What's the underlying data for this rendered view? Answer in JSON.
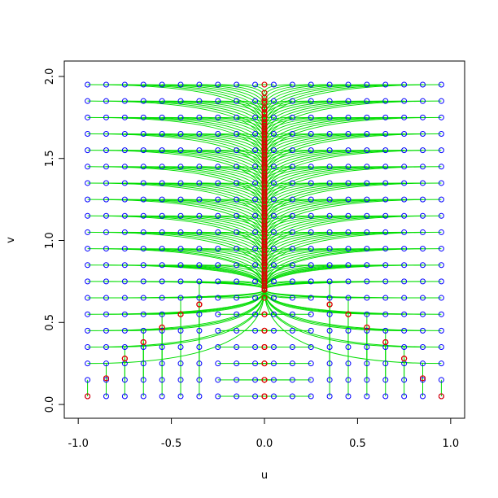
{
  "chart_data": {
    "type": "scatter",
    "xlabel": "u",
    "ylabel": "v",
    "xlim": [
      -1.075,
      1.075
    ],
    "ylim": [
      -0.084,
      2.094
    ],
    "xticks": [
      {
        "value": -1,
        "label": "-1.0"
      },
      -0.5,
      {
        "value": 0,
        "label": "0.0"
      },
      0.5,
      {
        "value": 1,
        "label": "1.0"
      }
    ],
    "yticks": [
      {
        "value": 0,
        "label": "0.0"
      },
      0.5,
      {
        "value": 1,
        "label": "1.0"
      },
      1.5,
      {
        "value": 2,
        "label": "2.0"
      }
    ],
    "start_color": "#0000ff",
    "end_color": "#dd0000",
    "path_color": "#00dd00",
    "start_u": [
      -0.95,
      -0.85,
      -0.75,
      -0.65,
      -0.55,
      -0.45,
      -0.35,
      -0.25,
      -0.15,
      -0.05,
      0.05,
      0.15,
      0.25,
      0.35,
      0.45,
      0.55,
      0.65,
      0.75,
      0.85,
      0.95
    ],
    "start_v": [
      0.05,
      0.15,
      0.25,
      0.35,
      0.45,
      0.55,
      0.65,
      0.75,
      0.85,
      0.95,
      1.05,
      1.15,
      1.25,
      1.35,
      1.45,
      1.55,
      1.65,
      1.75,
      1.85,
      1.95
    ],
    "end_u": [
      [
        -0.95,
        -0.85,
        -0.75,
        -0.65,
        -0.55,
        -0.45,
        -0.35,
        0,
        0,
        0,
        0,
        0,
        0,
        0.35,
        0.45,
        0.55,
        0.65,
        0.75,
        0.85,
        0.95
      ],
      [
        -0.95,
        -0.85,
        -0.75,
        -0.65,
        -0.55,
        -0.45,
        -0.35,
        0,
        0,
        0,
        0,
        0,
        0,
        0.35,
        0.45,
        0.55,
        0.65,
        0.75,
        0.85,
        0.95
      ],
      [
        0,
        -0.85,
        -0.75,
        -0.65,
        -0.55,
        -0.45,
        -0.35,
        0,
        0,
        0,
        0,
        0,
        0,
        0.35,
        0.45,
        0.55,
        0.65,
        0.75,
        0.85,
        0
      ],
      [
        0,
        0,
        -0.75,
        -0.65,
        -0.55,
        -0.45,
        -0.35,
        0,
        0,
        0,
        0,
        0,
        0,
        0.35,
        0.45,
        0.55,
        0.65,
        0.75,
        0,
        0
      ],
      [
        0,
        0,
        0,
        -0.65,
        -0.55,
        -0.45,
        -0.35,
        0,
        0,
        0,
        0,
        0,
        0,
        0.35,
        0.45,
        0.55,
        0.65,
        0,
        0,
        0
      ],
      [
        0,
        0,
        0,
        0,
        -0.55,
        -0.45,
        -0.35,
        0,
        0,
        0,
        0,
        0,
        0,
        0.35,
        0.45,
        0.55,
        0,
        0,
        0,
        0
      ],
      [
        0,
        0,
        0,
        0,
        0,
        -0.45,
        -0.35,
        0,
        0,
        0,
        0,
        0,
        0,
        0.35,
        0.45,
        0,
        0,
        0,
        0,
        0
      ],
      [
        0,
        0,
        0,
        0,
        0,
        0,
        -0.35,
        0,
        0,
        0,
        0,
        0,
        0,
        0.35,
        0,
        0,
        0,
        0,
        0,
        0
      ],
      [
        0,
        0,
        0,
        0,
        0,
        0,
        0,
        0,
        0,
        0,
        0,
        0,
        0,
        0,
        0,
        0,
        0,
        0,
        0,
        0
      ],
      [
        0,
        0,
        0,
        0,
        0,
        0,
        0,
        0,
        0,
        0,
        0,
        0,
        0,
        0,
        0,
        0,
        0,
        0,
        0,
        0
      ],
      [
        0,
        0,
        0,
        0,
        0,
        0,
        0,
        0,
        0,
        0,
        0,
        0,
        0,
        0,
        0,
        0,
        0,
        0,
        0,
        0
      ],
      [
        0,
        0,
        0,
        0,
        0,
        0,
        0,
        0,
        0,
        0,
        0,
        0,
        0,
        0,
        0,
        0,
        0,
        0,
        0,
        0
      ],
      [
        0,
        0,
        0,
        0,
        0,
        0,
        0,
        0,
        0,
        0,
        0,
        0,
        0,
        0,
        0,
        0,
        0,
        0,
        0,
        0
      ],
      [
        0,
        0,
        0,
        0,
        0,
        0,
        0,
        0,
        0,
        0,
        0,
        0,
        0,
        0,
        0,
        0,
        0,
        0,
        0,
        0
      ],
      [
        0,
        0,
        0,
        0,
        0,
        0,
        0,
        0,
        0,
        0,
        0,
        0,
        0,
        0,
        0,
        0,
        0,
        0,
        0,
        0
      ],
      [
        0,
        0,
        0,
        0,
        0,
        0,
        0,
        0,
        0,
        0,
        0,
        0,
        0,
        0,
        0,
        0,
        0,
        0,
        0,
        0
      ],
      [
        0,
        0,
        0,
        0,
        0,
        0,
        0,
        0,
        0,
        0,
        0,
        0,
        0,
        0,
        0,
        0,
        0,
        0,
        0,
        0
      ],
      [
        0,
        0,
        0,
        0,
        0,
        0,
        0,
        0,
        0,
        0,
        0,
        0,
        0,
        0,
        0,
        0,
        0,
        0,
        0,
        0
      ],
      [
        0,
        0,
        0,
        0,
        0,
        0,
        0,
        0,
        0,
        0,
        0,
        0,
        0,
        0,
        0,
        0,
        0,
        0,
        0,
        0
      ],
      [
        0,
        0,
        0,
        0,
        0,
        0,
        0,
        0,
        0,
        0,
        0,
        0,
        0,
        0,
        0,
        0,
        0,
        0,
        0,
        0
      ]
    ],
    "end_v": [
      [
        0.05,
        0.16,
        0.28,
        0.38,
        0.47,
        0.55,
        0.61,
        0.05,
        0.05,
        0.05,
        0.05,
        0.05,
        0.05,
        0.61,
        0.55,
        0.47,
        0.38,
        0.28,
        0.16,
        0.05
      ],
      [
        0.05,
        0.16,
        0.28,
        0.38,
        0.47,
        0.55,
        0.61,
        0.15,
        0.15,
        0.15,
        0.15,
        0.15,
        0.15,
        0.61,
        0.55,
        0.47,
        0.38,
        0.28,
        0.16,
        0.05
      ],
      [
        0.7,
        0.16,
        0.28,
        0.38,
        0.47,
        0.55,
        0.61,
        0.25,
        0.25,
        0.25,
        0.25,
        0.25,
        0.25,
        0.61,
        0.55,
        0.47,
        0.38,
        0.28,
        0.16,
        0.7
      ],
      [
        0.7,
        0.7,
        0.28,
        0.38,
        0.47,
        0.55,
        0.61,
        0.35,
        0.35,
        0.35,
        0.35,
        0.35,
        0.35,
        0.61,
        0.55,
        0.47,
        0.38,
        0.28,
        0.7,
        0.7
      ],
      [
        0.7,
        0.7,
        0.7,
        0.38,
        0.47,
        0.55,
        0.61,
        0.45,
        0.45,
        0.45,
        0.45,
        0.45,
        0.45,
        0.61,
        0.55,
        0.47,
        0.38,
        0.7,
        0.7,
        0.7
      ],
      [
        0.7,
        0.7,
        0.7,
        0.7,
        0.47,
        0.55,
        0.61,
        0.55,
        0.55,
        0.55,
        0.55,
        0.55,
        0.55,
        0.61,
        0.55,
        0.47,
        0.7,
        0.7,
        0.7,
        0.7
      ],
      [
        0.7,
        0.7,
        0.7,
        0.7,
        0.7,
        0.55,
        0.61,
        0.7,
        0.7,
        0.65,
        0.65,
        0.7,
        0.7,
        0.61,
        0.55,
        0.7,
        0.7,
        0.7,
        0.7,
        0.7
      ],
      [
        0.7,
        0.7,
        0.7,
        0.7,
        0.7,
        0.7,
        0.61,
        0.7,
        0.7,
        0.75,
        0.75,
        0.7,
        0.7,
        0.61,
        0.7,
        0.7,
        0.7,
        0.7,
        0.7,
        0.7
      ],
      [
        0.7,
        0.7,
        0.7,
        0.7,
        0.7,
        0.71,
        0.74,
        0.77,
        0.8,
        0.85,
        0.85,
        0.8,
        0.77,
        0.74,
        0.71,
        0.7,
        0.7,
        0.7,
        0.7,
        0.7
      ],
      [
        0.7,
        0.7,
        0.72,
        0.75,
        0.78,
        0.81,
        0.84,
        0.87,
        0.9,
        0.95,
        0.95,
        0.9,
        0.87,
        0.84,
        0.81,
        0.78,
        0.75,
        0.72,
        0.7,
        0.7
      ],
      [
        0.76,
        0.79,
        0.82,
        0.85,
        0.88,
        0.91,
        0.94,
        0.97,
        1.0,
        1.05,
        1.05,
        1.0,
        0.97,
        0.94,
        0.91,
        0.88,
        0.85,
        0.82,
        0.79,
        0.76
      ],
      [
        0.86,
        0.89,
        0.92,
        0.95,
        0.98,
        1.01,
        1.04,
        1.07,
        1.1,
        1.15,
        1.15,
        1.1,
        1.07,
        1.04,
        1.01,
        0.98,
        0.95,
        0.92,
        0.89,
        0.86
      ],
      [
        0.96,
        0.99,
        1.02,
        1.05,
        1.08,
        1.11,
        1.14,
        1.17,
        1.2,
        1.25,
        1.25,
        1.2,
        1.17,
        1.14,
        1.11,
        1.08,
        1.05,
        1.02,
        0.99,
        0.96
      ],
      [
        1.06,
        1.09,
        1.12,
        1.15,
        1.18,
        1.21,
        1.24,
        1.27,
        1.3,
        1.35,
        1.35,
        1.3,
        1.27,
        1.24,
        1.21,
        1.18,
        1.15,
        1.12,
        1.09,
        1.06
      ],
      [
        1.16,
        1.19,
        1.22,
        1.25,
        1.28,
        1.31,
        1.34,
        1.37,
        1.4,
        1.45,
        1.45,
        1.4,
        1.37,
        1.34,
        1.31,
        1.28,
        1.25,
        1.22,
        1.19,
        1.16
      ],
      [
        1.26,
        1.29,
        1.32,
        1.35,
        1.38,
        1.41,
        1.44,
        1.47,
        1.5,
        1.55,
        1.55,
        1.5,
        1.47,
        1.44,
        1.41,
        1.38,
        1.35,
        1.32,
        1.29,
        1.26
      ],
      [
        1.36,
        1.39,
        1.42,
        1.45,
        1.48,
        1.51,
        1.54,
        1.57,
        1.6,
        1.65,
        1.65,
        1.6,
        1.57,
        1.54,
        1.51,
        1.48,
        1.45,
        1.42,
        1.39,
        1.36
      ],
      [
        1.46,
        1.49,
        1.52,
        1.55,
        1.58,
        1.61,
        1.64,
        1.67,
        1.7,
        1.75,
        1.75,
        1.7,
        1.67,
        1.64,
        1.61,
        1.58,
        1.55,
        1.52,
        1.49,
        1.46
      ],
      [
        1.56,
        1.59,
        1.62,
        1.65,
        1.68,
        1.71,
        1.74,
        1.77,
        1.8,
        1.85,
        1.85,
        1.8,
        1.77,
        1.74,
        1.71,
        1.68,
        1.65,
        1.62,
        1.59,
        1.56
      ],
      [
        1.66,
        1.69,
        1.72,
        1.75,
        1.78,
        1.81,
        1.84,
        1.87,
        1.9,
        1.95,
        1.95,
        1.9,
        1.87,
        1.84,
        1.81,
        1.78,
        1.75,
        1.72,
        1.69,
        1.66
      ]
    ]
  }
}
